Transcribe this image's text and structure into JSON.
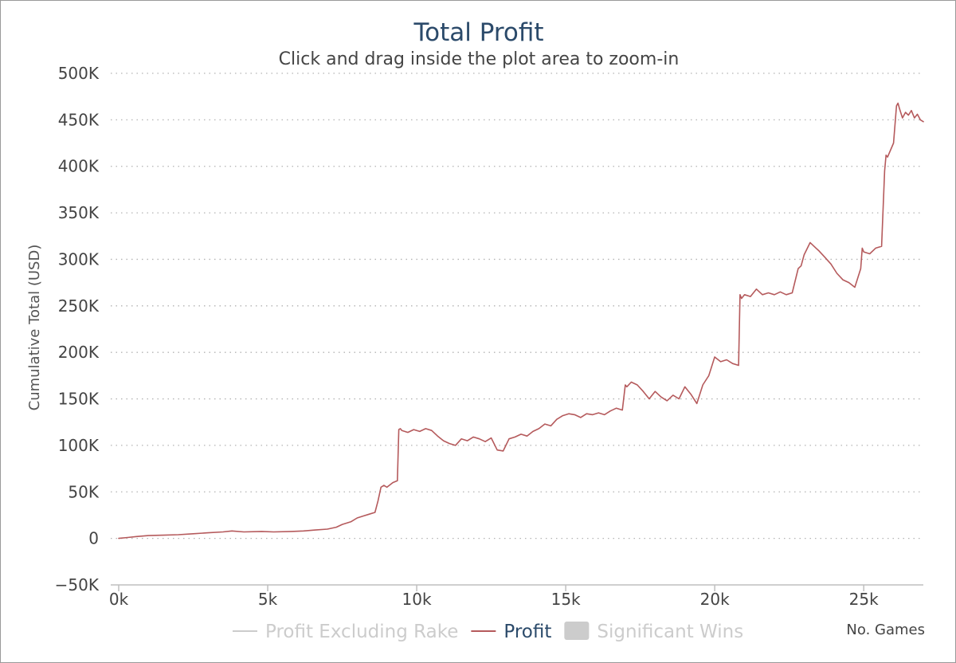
{
  "chart_data": {
    "type": "line",
    "title": "Total Profit",
    "subtitle": "Click and drag inside the plot area to zoom-in",
    "xlabel": "No. Games",
    "ylabel": "Cumulative Total (USD)",
    "xlim": [
      0,
      27000
    ],
    "ylim": [
      -50000,
      500000
    ],
    "x_ticks": [
      0,
      5000,
      10000,
      15000,
      20000,
      25000
    ],
    "x_tick_labels": [
      "0k",
      "5k",
      "10k",
      "15k",
      "20k",
      "25k"
    ],
    "y_ticks": [
      -50000,
      0,
      50000,
      100000,
      150000,
      200000,
      250000,
      300000,
      350000,
      400000,
      450000,
      500000
    ],
    "y_tick_labels": [
      "-50K",
      "0",
      "50K",
      "100K",
      "150K",
      "200K",
      "250K",
      "300K",
      "350K",
      "400K",
      "450K",
      "500K"
    ],
    "grid": true,
    "legend_position": "bottom-center",
    "legend": [
      {
        "label": "Profit Excluding Rake",
        "symbol": "line",
        "color": "#cccccc",
        "active": false
      },
      {
        "label": "Profit",
        "symbol": "line",
        "color": "#b55a5c",
        "active": true
      },
      {
        "label": "Significant Wins",
        "symbol": "square",
        "color": "#cccccc",
        "active": false
      }
    ],
    "series": [
      {
        "name": "Profit",
        "color": "#b55a5c",
        "x": [
          0,
          300,
          600,
          1000,
          1500,
          2000,
          2500,
          3000,
          3500,
          3800,
          4200,
          4800,
          5200,
          5800,
          6200,
          6600,
          7000,
          7300,
          7500,
          7800,
          8000,
          8200,
          8400,
          8600,
          8700,
          8800,
          8900,
          9000,
          9200,
          9350,
          9400,
          9450,
          9500,
          9700,
          9900,
          10100,
          10300,
          10500,
          10700,
          10900,
          11100,
          11300,
          11500,
          11700,
          11900,
          12100,
          12300,
          12500,
          12700,
          12900,
          13100,
          13300,
          13500,
          13700,
          13900,
          14100,
          14300,
          14500,
          14700,
          14900,
          15100,
          15300,
          15500,
          15700,
          15900,
          16100,
          16300,
          16500,
          16700,
          16900,
          17000,
          17050,
          17200,
          17400,
          17600,
          17800,
          18000,
          18200,
          18400,
          18600,
          18800,
          19000,
          19200,
          19400,
          19600,
          19800,
          20000,
          20200,
          20400,
          20600,
          20800,
          20850,
          20900,
          21000,
          21200,
          21400,
          21600,
          21800,
          22000,
          22200,
          22400,
          22600,
          22800,
          22900,
          23000,
          23200,
          23400,
          23500,
          23700,
          23900,
          24100,
          24300,
          24500,
          24700,
          24900,
          24950,
          25000,
          25200,
          25400,
          25600,
          25700,
          25750,
          25800,
          26000,
          26100,
          26150,
          26200,
          26300,
          26400,
          26500,
          26600,
          26700,
          26800,
          26900,
          27000
        ],
        "values": [
          0,
          1000,
          2000,
          3000,
          3500,
          4000,
          5000,
          6000,
          7000,
          8000,
          7000,
          7500,
          7000,
          7500,
          8000,
          9000,
          10000,
          12000,
          15000,
          18000,
          22000,
          24000,
          26000,
          28000,
          40000,
          55000,
          57000,
          55000,
          60000,
          62000,
          117000,
          118000,
          116000,
          114000,
          117000,
          115000,
          118000,
          116000,
          110000,
          105000,
          102000,
          100000,
          107000,
          105000,
          109000,
          107000,
          104000,
          108000,
          95000,
          94000,
          107000,
          109000,
          112000,
          110000,
          115000,
          118000,
          123000,
          121000,
          128000,
          132000,
          134000,
          133000,
          130000,
          134000,
          133000,
          135000,
          133000,
          137000,
          140000,
          138000,
          165000,
          163000,
          168000,
          165000,
          158000,
          150000,
          158000,
          152000,
          148000,
          154000,
          150000,
          163000,
          155000,
          145000,
          165000,
          175000,
          195000,
          190000,
          192000,
          188000,
          186000,
          262000,
          258000,
          262000,
          260000,
          268000,
          262000,
          264000,
          262000,
          265000,
          262000,
          264000,
          290000,
          293000,
          305000,
          318000,
          312000,
          309000,
          302000,
          295000,
          285000,
          278000,
          275000,
          270000,
          290000,
          312000,
          308000,
          306000,
          312000,
          314000,
          395000,
          412000,
          410000,
          425000,
          465000,
          468000,
          462000,
          452000,
          458000,
          455000,
          460000,
          452000,
          456000,
          450000,
          448000
        ]
      }
    ]
  }
}
